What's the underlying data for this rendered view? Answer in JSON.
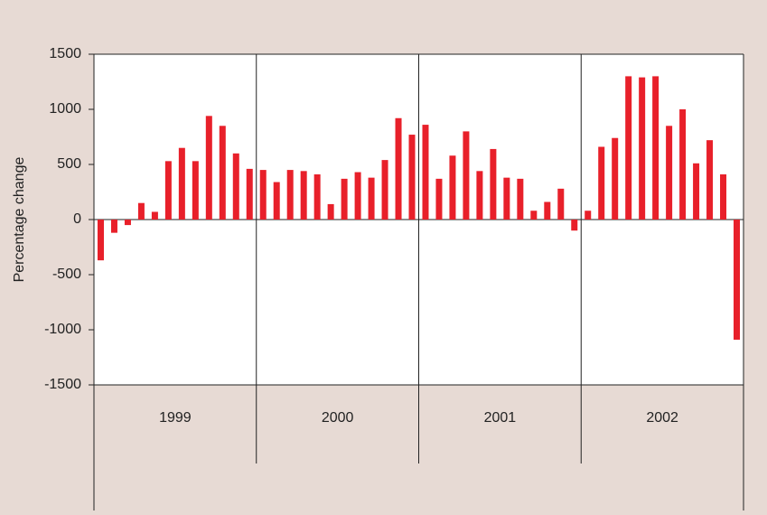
{
  "chart_data": {
    "type": "bar",
    "y_label": "Percentage change",
    "categories": [
      null,
      null,
      null,
      null,
      null,
      null,
      null,
      null,
      null,
      null,
      null,
      null,
      null,
      null,
      null,
      null,
      null,
      null,
      null,
      null,
      null,
      null,
      null,
      null,
      null,
      null,
      null,
      null,
      null,
      null,
      null,
      null,
      null,
      null,
      null,
      null,
      null,
      null,
      null,
      null,
      null,
      null,
      null,
      null,
      null,
      null,
      null,
      null
    ],
    "group_labels": [
      "1999",
      "2000",
      "2001",
      "2002"
    ],
    "values": [
      -370,
      -120,
      -50,
      150,
      70,
      530,
      650,
      530,
      940,
      850,
      600,
      460,
      450,
      340,
      450,
      440,
      410,
      140,
      370,
      430,
      380,
      540,
      920,
      770,
      860,
      370,
      580,
      800,
      440,
      640,
      380,
      370,
      80,
      160,
      280,
      -100,
      80,
      660,
      740,
      1300,
      1290,
      1300,
      850,
      1000,
      510,
      720,
      410,
      -1090
    ],
    "color": "#e8202a",
    "ylim": [
      -1500,
      1500
    ],
    "yticks": [
      -1500,
      -1000,
      -500,
      0,
      500,
      1000,
      1500
    ]
  }
}
